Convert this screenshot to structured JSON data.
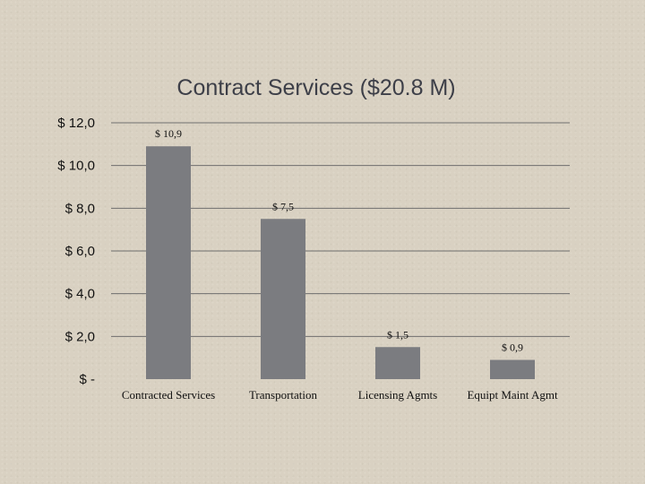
{
  "chart_data": {
    "type": "bar",
    "title": "Contract Services ($20.8 M)",
    "xlabel": "",
    "ylabel": "",
    "categories": [
      "Contracted Services",
      "Transportation",
      "Licensing Agmts",
      "Equipt Maint Agmt"
    ],
    "values": [
      10.9,
      7.5,
      1.5,
      0.9
    ],
    "data_labels": [
      "$ 10,9",
      "$ 7,5",
      "$ 1,5",
      "$ 0,9"
    ],
    "ylim": [
      0,
      12
    ],
    "yticks": [
      0,
      2,
      4,
      6,
      8,
      10,
      12
    ],
    "ytick_labels": [
      "$ -",
      "$ 2,0",
      "$ 4,0",
      "$ 6,0",
      "$ 8,0",
      "$ 10,0",
      "$ 12,0"
    ],
    "grid": true,
    "legend": "none"
  },
  "colors": {
    "bar": "#7b7c80",
    "grid": "#6e6e6e",
    "title": "#3d3f48"
  }
}
